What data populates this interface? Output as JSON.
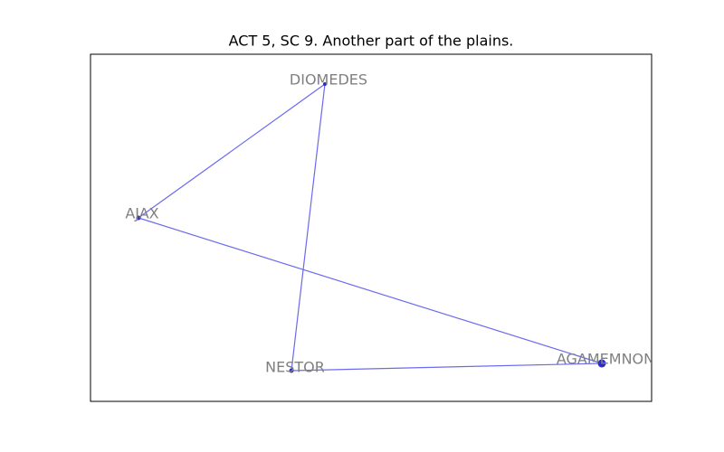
{
  "title": "ACT 5, SC 9. Another part of the plains.",
  "nodes": [
    {
      "label": "DIOMEDES"
    },
    {
      "label": "AJAX"
    },
    {
      "label": "NESTOR"
    },
    {
      "label": "AGAMEMNON"
    }
  ]
}
